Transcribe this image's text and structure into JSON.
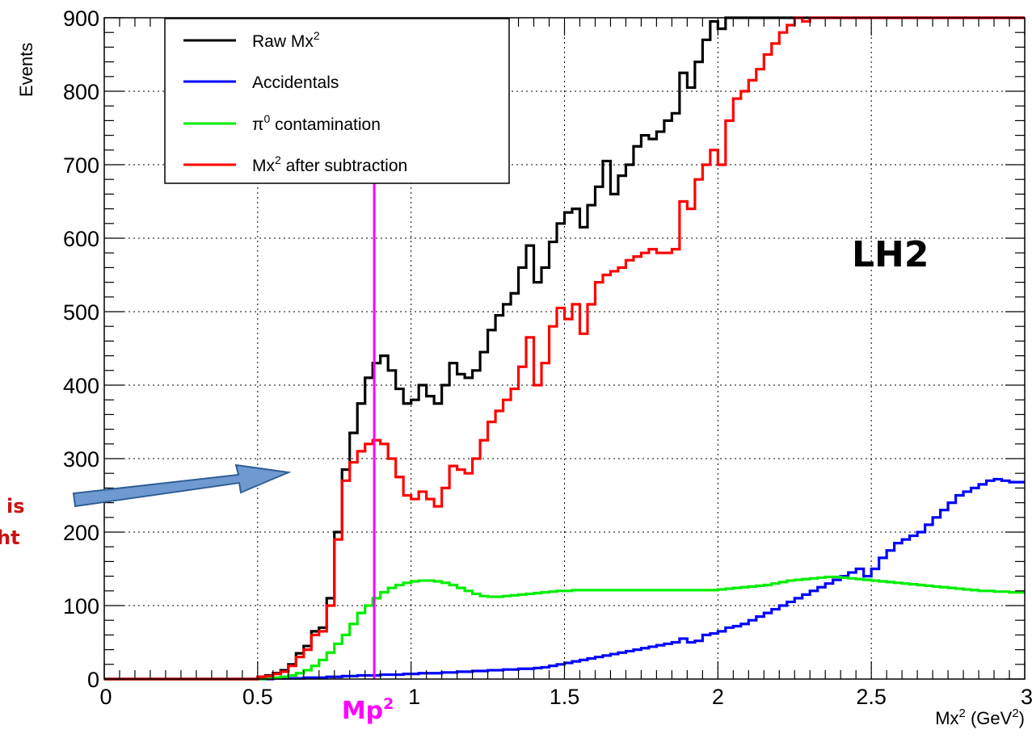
{
  "chart_data": {
    "type": "line",
    "step": true,
    "xlabel": "Mx",
    "xlabel_sup": "2",
    "xlabel_unit_open": " (GeV",
    "xlabel_unit_sup": "2",
    "xlabel_unit_close": ")",
    "ylabel": "Events",
    "xlim": [
      0,
      3
    ],
    "ylim": [
      0,
      900
    ],
    "x_ticks": [
      "0",
      "0.5",
      "1",
      "1.5",
      "2",
      "2.5",
      "3"
    ],
    "y_ticks": [
      "0",
      "100",
      "200",
      "300",
      "400",
      "500",
      "600",
      "700",
      "800",
      "900"
    ],
    "grid": true,
    "legend_position": "top-left",
    "bin_width": 0.025,
    "series": [
      {
        "name": "Raw Mx",
        "name_sup": "2",
        "color": "#000000",
        "values": [
          0,
          0,
          0,
          0,
          0,
          0,
          0,
          0,
          0,
          0,
          0,
          0,
          0,
          0,
          0,
          0,
          0,
          0,
          0,
          0,
          3,
          5,
          8,
          12,
          20,
          35,
          45,
          65,
          70,
          110,
          200,
          285,
          335,
          375,
          410,
          430,
          440,
          420,
          395,
          375,
          380,
          400,
          385,
          375,
          400,
          430,
          415,
          410,
          420,
          445,
          475,
          495,
          510,
          525,
          560,
          590,
          540,
          560,
          595,
          620,
          635,
          640,
          615,
          645,
          670,
          705,
          660,
          685,
          700,
          725,
          740,
          735,
          745,
          760,
          770,
          825,
          805,
          840,
          870,
          895,
          885,
          900,
          900,
          900,
          900,
          900,
          900,
          900,
          900,
          900,
          900,
          900,
          900,
          900,
          900,
          900,
          900,
          900,
          900,
          900,
          900,
          900,
          900,
          900,
          900,
          900,
          900,
          900,
          900,
          900,
          900,
          900,
          900,
          900,
          900,
          900,
          900,
          900,
          900,
          900
        ]
      },
      {
        "name": "Accidentals",
        "color": "#0000ff",
        "values": [
          0,
          0,
          0,
          0,
          0,
          0,
          0,
          0,
          0,
          0,
          0,
          0,
          0,
          0,
          0,
          0,
          0,
          0,
          0,
          0,
          0,
          0,
          1,
          1,
          1,
          1,
          2,
          2,
          2,
          3,
          3,
          4,
          4,
          5,
          5,
          5,
          6,
          6,
          6,
          7,
          7,
          8,
          8,
          8,
          9,
          9,
          10,
          10,
          11,
          11,
          12,
          12,
          13,
          13,
          14,
          14,
          15,
          16,
          18,
          20,
          22,
          24,
          26,
          28,
          30,
          32,
          34,
          36,
          38,
          40,
          42,
          44,
          46,
          48,
          50,
          55,
          50,
          52,
          60,
          62,
          65,
          70,
          72,
          75,
          80,
          85,
          90,
          95,
          100,
          105,
          110,
          115,
          120,
          125,
          130,
          135,
          140,
          145,
          150,
          140,
          150,
          165,
          175,
          185,
          190,
          195,
          200,
          210,
          220,
          230,
          240,
          250,
          255,
          260,
          265,
          270,
          272,
          270,
          268,
          268
        ]
      },
      {
        "name": "π",
        "name_sup": "0",
        "name_tail": " contamination",
        "color": "#00ee00",
        "values": [
          0,
          0,
          0,
          0,
          0,
          0,
          0,
          0,
          0,
          0,
          0,
          0,
          0,
          0,
          0,
          0,
          0,
          0,
          0,
          0,
          0,
          1,
          2,
          3,
          5,
          8,
          12,
          18,
          26,
          36,
          48,
          60,
          75,
          90,
          100,
          110,
          118,
          124,
          128,
          131,
          133,
          134,
          134,
          133,
          131,
          128,
          124,
          120,
          116,
          113,
          112,
          112,
          113,
          114,
          115,
          116,
          117,
          118,
          119,
          120,
          120,
          121,
          121,
          121,
          121,
          121,
          121,
          121,
          121,
          121,
          121,
          121,
          121,
          121,
          121,
          121,
          121,
          121,
          121,
          121,
          122,
          123,
          124,
          125,
          126,
          127,
          128,
          130,
          132,
          134,
          135,
          136,
          137,
          138,
          139,
          139,
          138,
          137,
          136,
          135,
          134,
          133,
          132,
          131,
          130,
          129,
          128,
          127,
          126,
          125,
          124,
          123,
          122,
          121,
          120,
          120,
          119,
          119,
          118,
          118
        ]
      },
      {
        "name": "Mx",
        "name_sup": "2",
        "name_tail": " after subtraction",
        "color": "#ff0000",
        "values": [
          0,
          0,
          0,
          0,
          0,
          0,
          0,
          0,
          0,
          0,
          0,
          0,
          0,
          0,
          0,
          0,
          0,
          0,
          0,
          0,
          3,
          4,
          7,
          10,
          18,
          30,
          40,
          60,
          65,
          100,
          190,
          270,
          295,
          310,
          320,
          325,
          320,
          300,
          275,
          250,
          245,
          255,
          245,
          235,
          260,
          290,
          285,
          280,
          300,
          325,
          350,
          365,
          380,
          395,
          425,
          465,
          400,
          430,
          480,
          505,
          490,
          510,
          470,
          510,
          540,
          550,
          555,
          560,
          570,
          575,
          580,
          585,
          580,
          580,
          585,
          650,
          640,
          680,
          700,
          720,
          700,
          760,
          790,
          800,
          815,
          830,
          850,
          865,
          880,
          890,
          900,
          895,
          900,
          900,
          900,
          900,
          900,
          900,
          900,
          900,
          900,
          900,
          900,
          900,
          900,
          900,
          900,
          900,
          900,
          900,
          900,
          900,
          900,
          900,
          900,
          900,
          900,
          900,
          900,
          900
        ]
      }
    ],
    "vline": {
      "x": 0.88,
      "label": "Mp",
      "label_sup": "2",
      "color": "#ff00ff"
    },
    "annotation": "LH2",
    "side_text": [
      "is",
      "ht"
    ],
    "side_text_color": "#cc1111",
    "arrow_color": "#6f9ad1"
  }
}
